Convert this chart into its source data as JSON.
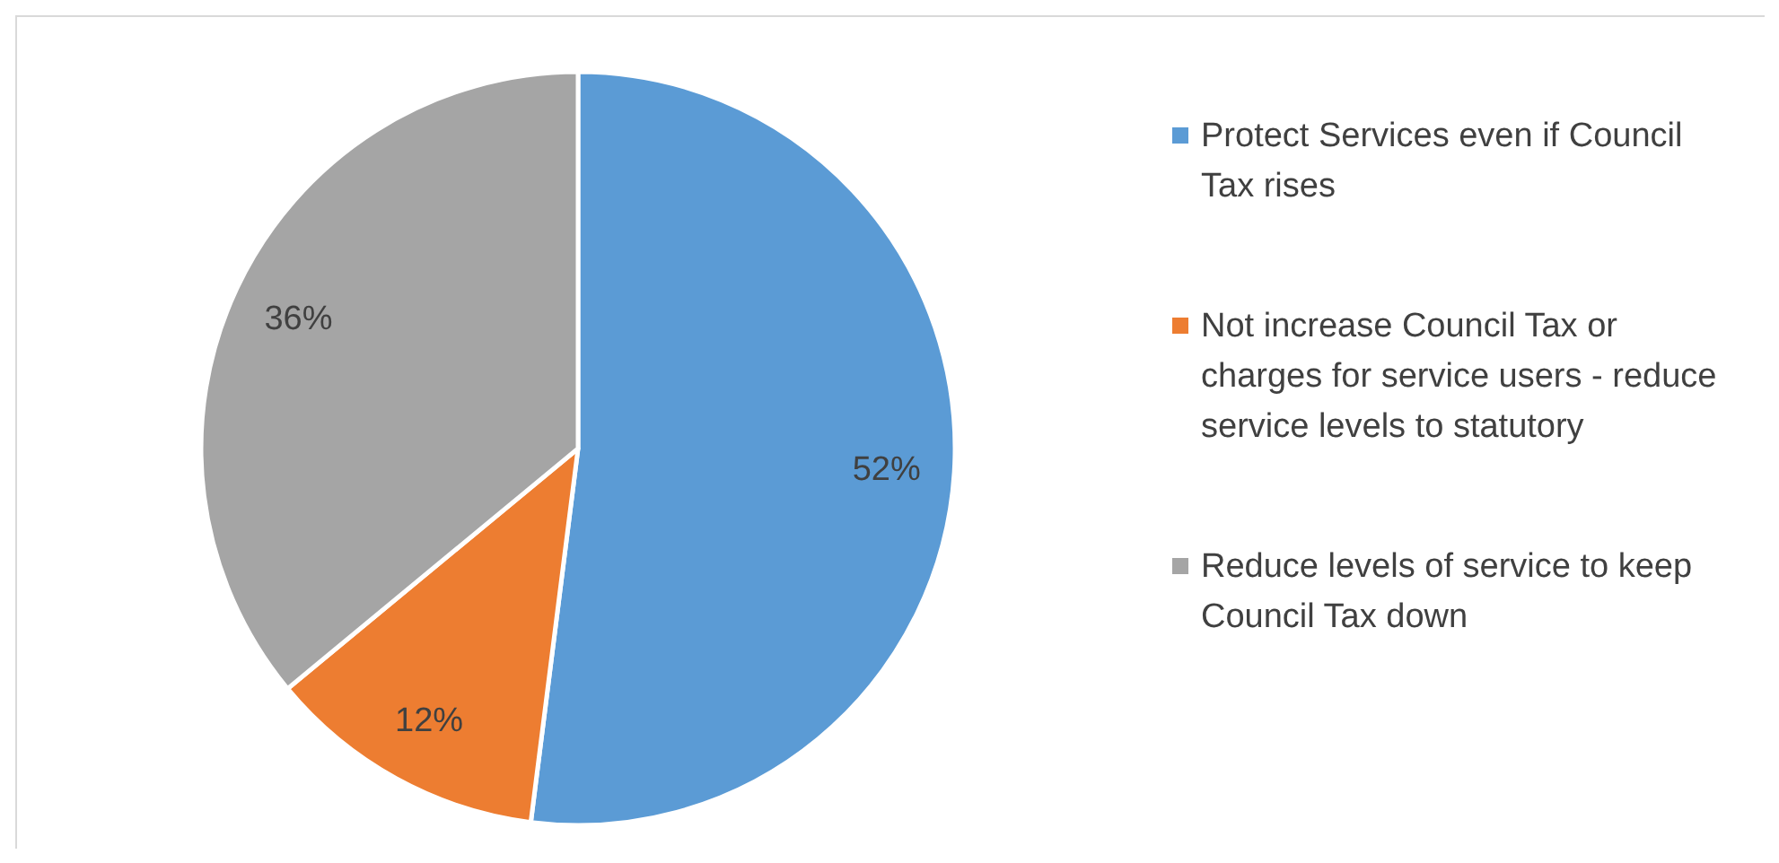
{
  "chart_data": {
    "type": "pie",
    "categories": [
      "Protect Services even if Council Tax rises",
      "Not increase Council Tax or charges for service users - reduce service levels to statutory",
      "Reduce levels of service to keep Council Tax down"
    ],
    "values": [
      52,
      12,
      36
    ],
    "colors": [
      "#5b9bd5",
      "#ed7d31",
      "#a5a5a5"
    ],
    "value_labels": [
      "52%",
      "12%",
      "36%"
    ],
    "legend": "right"
  }
}
